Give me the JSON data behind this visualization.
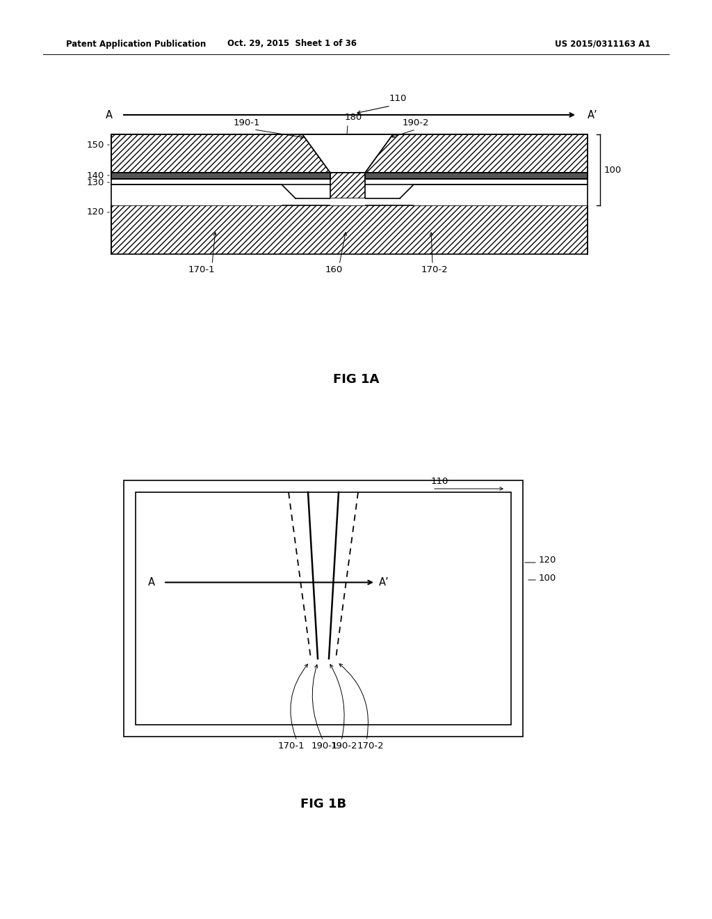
{
  "bg_color": "#ffffff",
  "header_text_left": "Patent Application Publication",
  "header_text_mid": "Oct. 29, 2015  Sheet 1 of 36",
  "header_text_right": "US 2015/0311163 A1",
  "fig1a_caption": "FIG 1A",
  "fig1b_caption": "FIG 1B",
  "line_color": "#000000",
  "lw": 1.2
}
